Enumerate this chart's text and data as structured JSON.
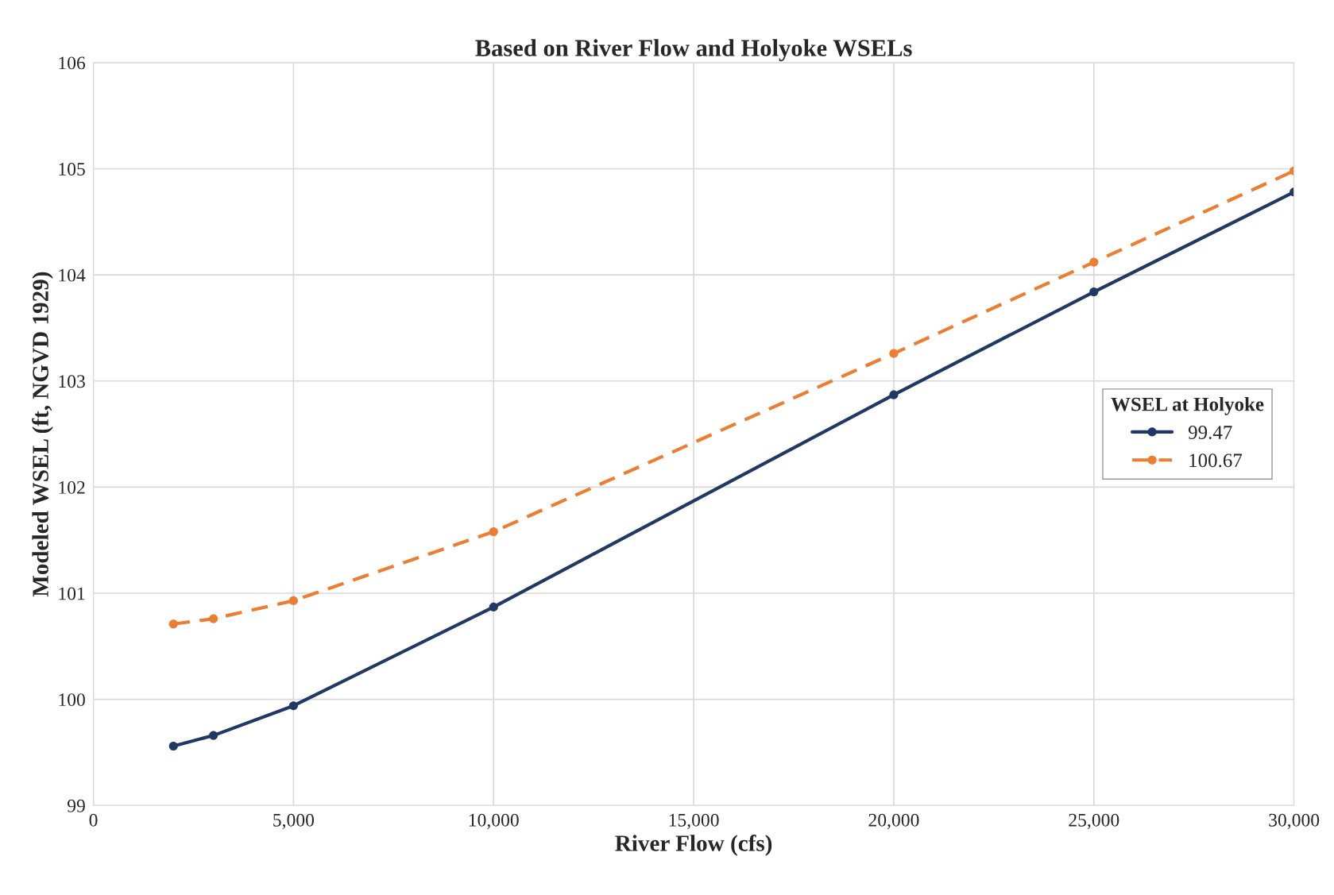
{
  "chart_data": {
    "type": "line",
    "title": "Based on River Flow and Holyoke WSELs",
    "xlabel": "River Flow (cfs)",
    "ylabel": "Modeled WSEL (ft, NGVD 1929)",
    "legend_title": "WSEL at Holyoke",
    "x": [
      2000,
      3000,
      5000,
      10000,
      20000,
      25000,
      30000
    ],
    "series": [
      {
        "name": "99.47",
        "color": "#203864",
        "line_style": "solid",
        "values": [
          99.56,
          99.66,
          99.94,
          100.87,
          102.87,
          103.84,
          104.78
        ]
      },
      {
        "name": "100.67",
        "color": "#ed7d31",
        "line_style": "dashed",
        "values": [
          100.71,
          100.76,
          100.93,
          101.58,
          103.26,
          104.12,
          104.98
        ]
      }
    ],
    "xlim": [
      0,
      30000
    ],
    "ylim": [
      99,
      106
    ],
    "xticks": [
      {
        "value": 0,
        "label": "0"
      },
      {
        "value": 5000,
        "label": "5,000"
      },
      {
        "value": 10000,
        "label": "10,000"
      },
      {
        "value": 15000,
        "label": "15,000"
      },
      {
        "value": 20000,
        "label": "20,000"
      },
      {
        "value": 25000,
        "label": "25,000"
      },
      {
        "value": 30000,
        "label": "30,000"
      }
    ],
    "yticks": [
      99,
      100,
      101,
      102,
      103,
      104,
      105,
      106
    ],
    "grid": true,
    "legend": "right",
    "marker": "circle"
  }
}
